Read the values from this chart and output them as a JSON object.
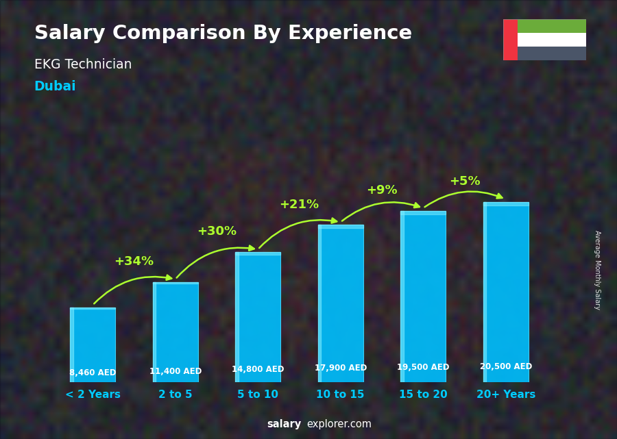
{
  "title_line1": "Salary Comparison By Experience",
  "subtitle_line1": "EKG Technician",
  "subtitle_line2": "Dubai",
  "categories": [
    "< 2 Years",
    "2 to 5",
    "5 to 10",
    "10 to 15",
    "15 to 20",
    "20+ Years"
  ],
  "values": [
    8460,
    11400,
    14800,
    17900,
    19500,
    20500
  ],
  "value_labels": [
    "8,460 AED",
    "11,400 AED",
    "14,800 AED",
    "17,900 AED",
    "19,500 AED",
    "20,500 AED"
  ],
  "pct_labels": [
    "+34%",
    "+30%",
    "+21%",
    "+9%",
    "+5%"
  ],
  "bar_color": "#00BFFF",
  "bar_highlight": "#80EEFF",
  "bg_color": "#2a2a2a",
  "title_color": "#FFFFFF",
  "subtitle1_color": "#FFFFFF",
  "subtitle2_color": "#00CCFF",
  "xlabel_color": "#00CCFF",
  "value_label_color": "#FFFFFF",
  "pct_color": "#ADFF2F",
  "arrow_color": "#ADFF2F",
  "footer_salary_color": "#FFFFFF",
  "footer_explorer_color": "#FFFFFF",
  "ylabel_text": "Average Monthly Salary",
  "figwidth": 9.0,
  "figheight": 6.41
}
